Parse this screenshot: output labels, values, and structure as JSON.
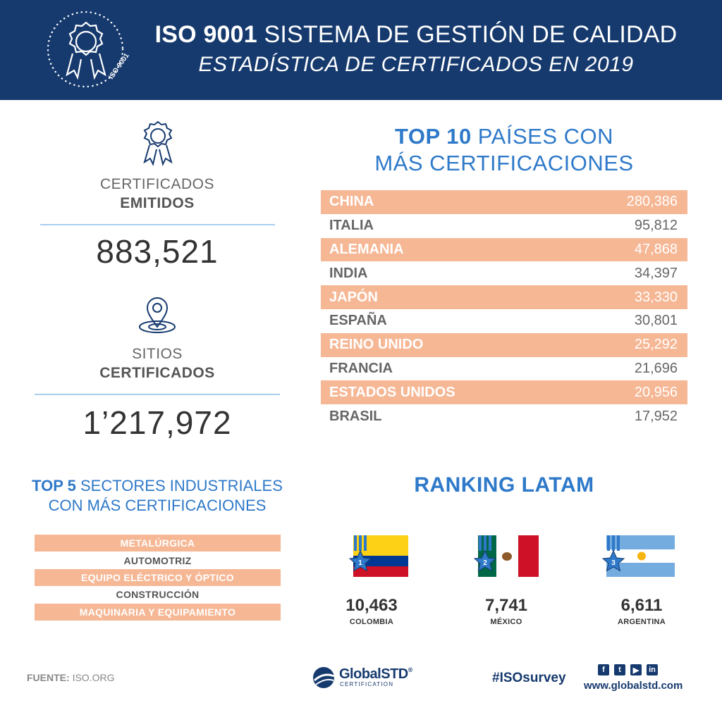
{
  "header": {
    "title_bold": "ISO 9001",
    "title_rest": " SISTEMA DE GESTIÓN DE CALIDAD",
    "subtitle": "ESTADÍSTICA DE CERTIFICADOS EN 2019",
    "badge_text": "ISO 9001"
  },
  "stats": [
    {
      "line1": "CERTIFICADOS",
      "line2": "EMITIDOS",
      "value": "883,521",
      "icon": "award-ribbon-icon"
    },
    {
      "line1": "SITIOS",
      "line2": "CERTIFICADOS",
      "value": "1’217,972",
      "icon": "location-pin-icon"
    }
  ],
  "top10": {
    "title_bold": "TOP 10",
    "title_rest": " PAÍSES CON",
    "title_line2": "MÁS CERTIFICACIONES",
    "rows": [
      {
        "country": "CHINA",
        "value": "280,386"
      },
      {
        "country": "ITALIA",
        "value": "95,812"
      },
      {
        "country": "ALEMANIA",
        "value": "47,868"
      },
      {
        "country": "INDIA",
        "value": "34,397"
      },
      {
        "country": "JAPÓN",
        "value": "33,330"
      },
      {
        "country": "ESPAÑA",
        "value": "30,801"
      },
      {
        "country": "REINO UNIDO",
        "value": "25,292"
      },
      {
        "country": "FRANCIA",
        "value": "21,696"
      },
      {
        "country": "ESTADOS UNIDOS",
        "value": "20,956"
      },
      {
        "country": "BRASIL",
        "value": "17,952"
      }
    ]
  },
  "sectors": {
    "title_bold": "TOP 5",
    "title_rest": " SECTORES INDUSTRIALES",
    "title_line2": "CON MÁS CERTIFICACIONES",
    "items": [
      "METALÚRGICA",
      "AUTOMOTRIZ",
      "EQUIPO ELÉCTRICO Y ÓPTICO",
      "CONSTRUCCIÓN",
      "MAQUINARIA Y EQUIPAMIENTO"
    ]
  },
  "ranking": {
    "title": "RANKING LATAM",
    "items": [
      {
        "rank": "1",
        "value": "10,463",
        "country": "COLOMBIA"
      },
      {
        "rank": "2",
        "value": "7,741",
        "country": "MÉXICO"
      },
      {
        "rank": "3",
        "value": "6,611",
        "country": "ARGENTINA"
      }
    ]
  },
  "footer": {
    "source_label": "FUENTE:",
    "source_value": "ISO.ORG",
    "brand": "GlobalSTD",
    "brand_reg": "®",
    "brand_sub": "CERTIFICATION",
    "hashtag": "#ISOsurvey",
    "website": "www.globalstd.com",
    "social": [
      "facebook-icon",
      "twitter-icon",
      "youtube-icon",
      "linkedin-icon"
    ]
  },
  "colors": {
    "header_bg": "#163a6e",
    "accent_blue": "#2e79c9",
    "highlight_peach": "#f6b795"
  }
}
